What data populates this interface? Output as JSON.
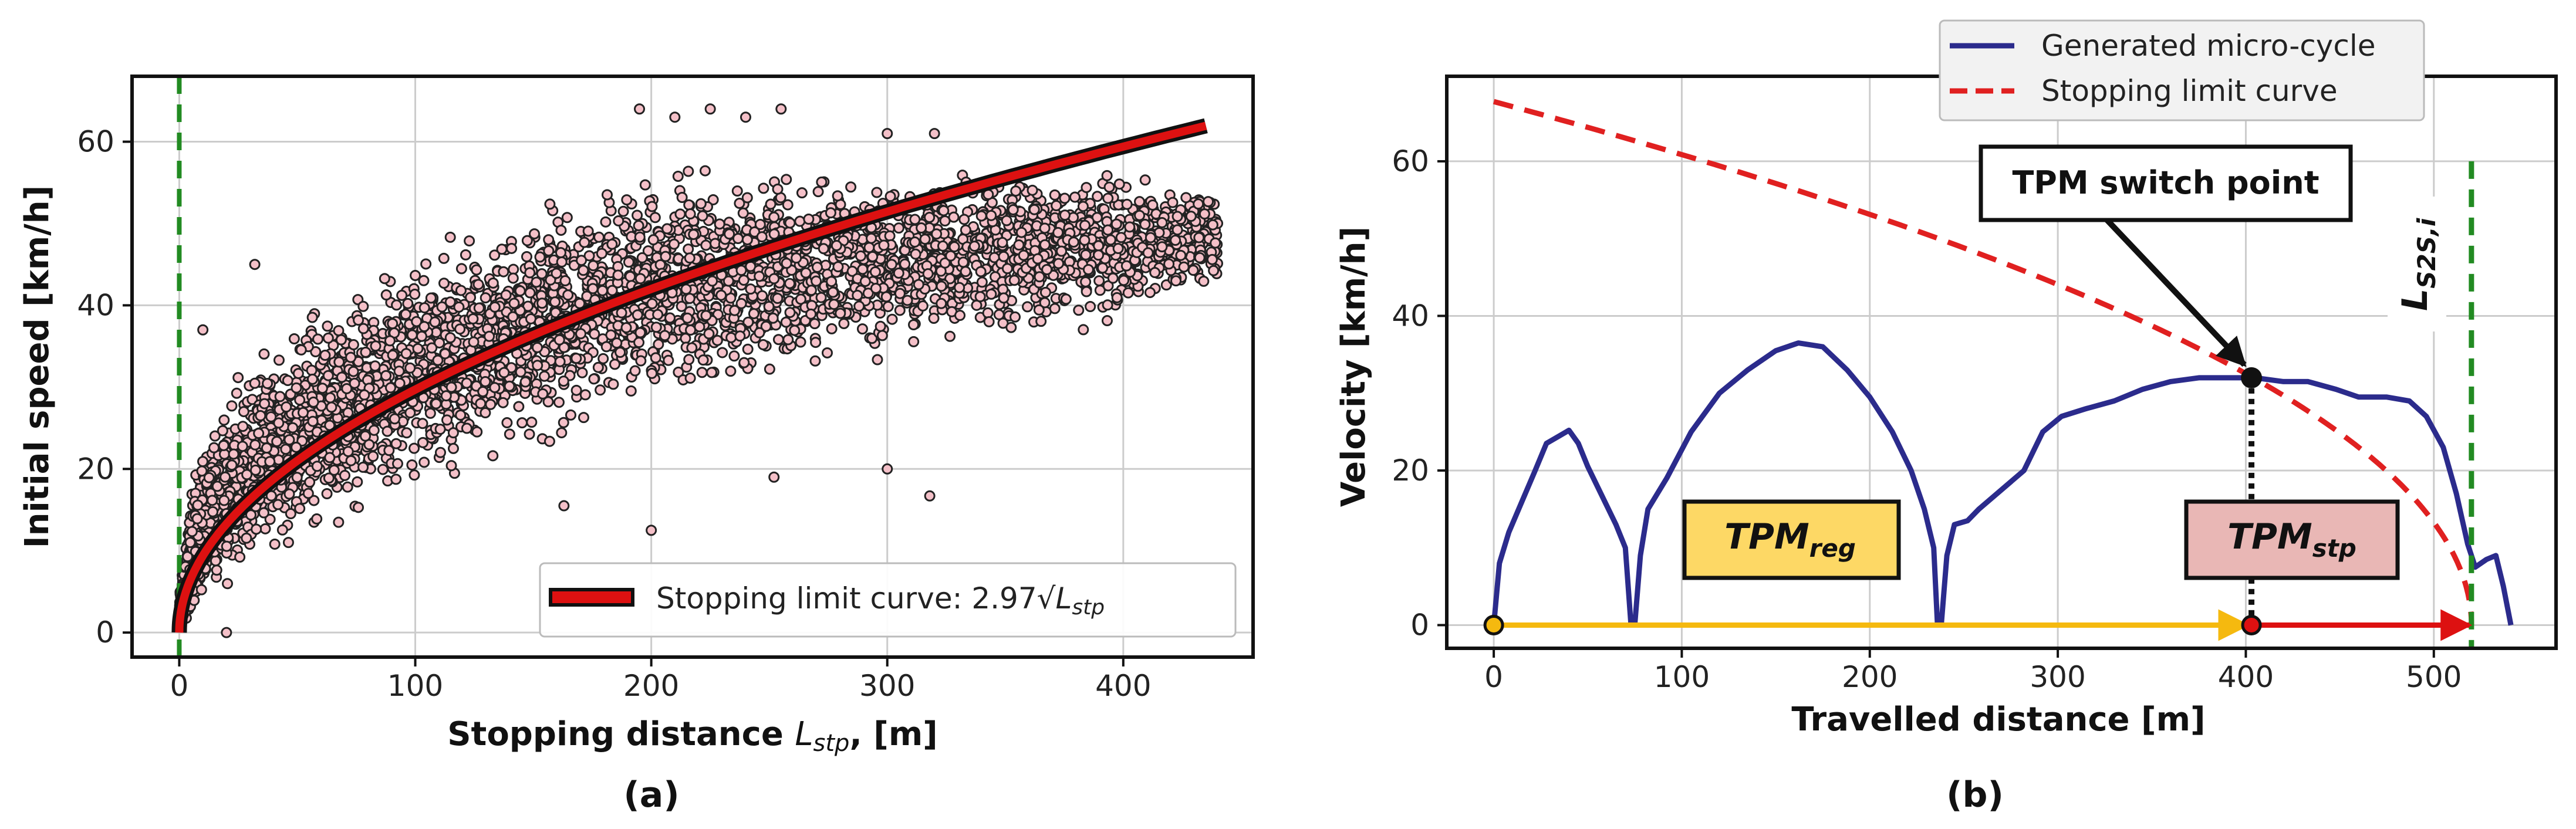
{
  "chart_data": [
    {
      "panel": "(a)",
      "type": "scatter",
      "xlabel_prefix": "Stopping distance ",
      "xlabel_var": "L",
      "xlabel_sub": "stp",
      "xlabel_suffix": ", [m]",
      "ylabel": "Initial speed [km/h]",
      "xlim": [
        -20,
        455
      ],
      "ylim": [
        -3,
        68
      ],
      "xticks": [
        0,
        100,
        200,
        300,
        400
      ],
      "yticks": [
        0,
        20,
        40,
        60
      ],
      "grid": true,
      "legend_placement": "lower-right",
      "fit_curve": {
        "coefficient": 2.97,
        "label_prefix": "Stopping limit curve: 2.97√",
        "label_var": "L",
        "label_sub": "stp",
        "color": "#dd1111",
        "x_range": [
          0,
          435
        ]
      },
      "reference_line": {
        "x": 0,
        "color": "#228b22",
        "style": "dashed"
      },
      "scatter": {
        "approx_count": 9000,
        "marker_face": "#f4c0c8",
        "marker_edge": "#222222",
        "envelope": [
          {
            "x": 0,
            "v_min": 0,
            "v_max": 6
          },
          {
            "x": 5,
            "v_min": 0,
            "v_max": 22
          },
          {
            "x": 10,
            "v_min": 2,
            "v_max": 30
          },
          {
            "x": 25,
            "v_min": 6,
            "v_max": 38
          },
          {
            "x": 50,
            "v_min": 10,
            "v_max": 44
          },
          {
            "x": 75,
            "v_min": 13,
            "v_max": 48
          },
          {
            "x": 100,
            "v_min": 16,
            "v_max": 53
          },
          {
            "x": 150,
            "v_min": 20,
            "v_max": 57
          },
          {
            "x": 200,
            "v_min": 23,
            "v_max": 60
          },
          {
            "x": 250,
            "v_min": 25,
            "v_max": 59
          },
          {
            "x": 300,
            "v_min": 25,
            "v_max": 58
          },
          {
            "x": 350,
            "v_min": 26,
            "v_max": 57
          },
          {
            "x": 400,
            "v_min": 27,
            "v_max": 57
          },
          {
            "x": 440,
            "v_min": 30,
            "v_max": 56
          }
        ],
        "outliers": [
          {
            "x": 20,
            "y": 0
          },
          {
            "x": 10,
            "y": 37
          },
          {
            "x": 32,
            "y": 45
          },
          {
            "x": 200,
            "y": 12.5
          },
          {
            "x": 163,
            "y": 15.5
          },
          {
            "x": 318,
            "y": 16.7
          },
          {
            "x": 252,
            "y": 19
          },
          {
            "x": 300,
            "y": 20
          },
          {
            "x": 195,
            "y": 64
          },
          {
            "x": 210,
            "y": 63
          },
          {
            "x": 225,
            "y": 64
          },
          {
            "x": 240,
            "y": 63
          },
          {
            "x": 255,
            "y": 64
          },
          {
            "x": 300,
            "y": 61
          },
          {
            "x": 320,
            "y": 61
          }
        ]
      }
    },
    {
      "panel": "(b)",
      "type": "line",
      "xlabel": "Travelled distance [m]",
      "ylabel": "Velocity [km/h]",
      "xlim": [
        -25,
        565
      ],
      "ylim": [
        -3,
        71
      ],
      "xticks": [
        0,
        100,
        200,
        300,
        400,
        500
      ],
      "yticks": [
        0,
        20,
        40,
        60
      ],
      "grid": true,
      "legend_placement": "top-right (above axes)",
      "series": [
        {
          "name": "Generated micro-cycle",
          "color": "#2b2b8c",
          "style": "solid",
          "points": [
            [
              0,
              0
            ],
            [
              3,
              8
            ],
            [
              8,
              12
            ],
            [
              15,
              16
            ],
            [
              22,
              20
            ],
            [
              28,
              23.5
            ],
            [
              35,
              24.5
            ],
            [
              40,
              25.2
            ],
            [
              45,
              23.5
            ],
            [
              50,
              20.5
            ],
            [
              57,
              17
            ],
            [
              65,
              13
            ],
            [
              70,
              10
            ],
            [
              73,
              0
            ],
            [
              75,
              0
            ],
            [
              78,
              9
            ],
            [
              82,
              15
            ],
            [
              92,
              19
            ],
            [
              105,
              25
            ],
            [
              120,
              30
            ],
            [
              135,
              33
            ],
            [
              150,
              35.5
            ],
            [
              162,
              36.5
            ],
            [
              175,
              36
            ],
            [
              188,
              33
            ],
            [
              200,
              29.5
            ],
            [
              212,
              25
            ],
            [
              222,
              20
            ],
            [
              229,
              15
            ],
            [
              234,
              10
            ],
            [
              236,
              0
            ],
            [
              238,
              0
            ],
            [
              241,
              9
            ],
            [
              245,
              13
            ],
            [
              252,
              13.5
            ],
            [
              258,
              15
            ],
            [
              270,
              17.5
            ],
            [
              282,
              20
            ],
            [
              292,
              25
            ],
            [
              302,
              27
            ],
            [
              315,
              28
            ],
            [
              330,
              29
            ],
            [
              345,
              30.5
            ],
            [
              360,
              31.5
            ],
            [
              375,
              32
            ],
            [
              390,
              32
            ],
            [
              405,
              32
            ],
            [
              420,
              31.5
            ],
            [
              433,
              31.5
            ],
            [
              448,
              30.5
            ],
            [
              460,
              29.5
            ],
            [
              475,
              29.5
            ],
            [
              487,
              29
            ],
            [
              496,
              27
            ],
            [
              505,
              23
            ],
            [
              512,
              17
            ],
            [
              518,
              10.5
            ],
            [
              522,
              7.5
            ],
            [
              528,
              8.5
            ],
            [
              533,
              9
            ],
            [
              537,
              5
            ],
            [
              541,
              0
            ]
          ]
        },
        {
          "name": "Stopping limit curve",
          "color": "#e02020",
          "style": "dashed",
          "coefficient": 2.97,
          "stop_distance": 520
        }
      ],
      "marks": {
        "reference_line_label_main": "L",
        "reference_line_label_sub": "S2S,i",
        "reference_line_x": 520,
        "reference_line_ymax": 60,
        "switch_point": {
          "x": 403,
          "y": 32,
          "label": "TPM switch point"
        },
        "start_point": {
          "x": 0,
          "y": 0
        },
        "switch_ground_point": {
          "x": 403,
          "y": 0
        },
        "regions": [
          {
            "label_main": "TPM",
            "label_sub": "reg",
            "from": 0,
            "to": 403,
            "color": "#f5b90f",
            "box_fill": "#fdd865"
          },
          {
            "label_main": "TPM",
            "label_sub": "stp",
            "from": 403,
            "to": 520,
            "color": "#dd1111",
            "box_fill": "#e9b7b5"
          }
        ]
      }
    }
  ],
  "colors": {
    "micro_cycle": "#2b2b8c",
    "limit_curve": "#e02020",
    "reference_line": "#228b22",
    "regular_arrow": "#f5b90f",
    "stop_arrow": "#dd1111"
  }
}
